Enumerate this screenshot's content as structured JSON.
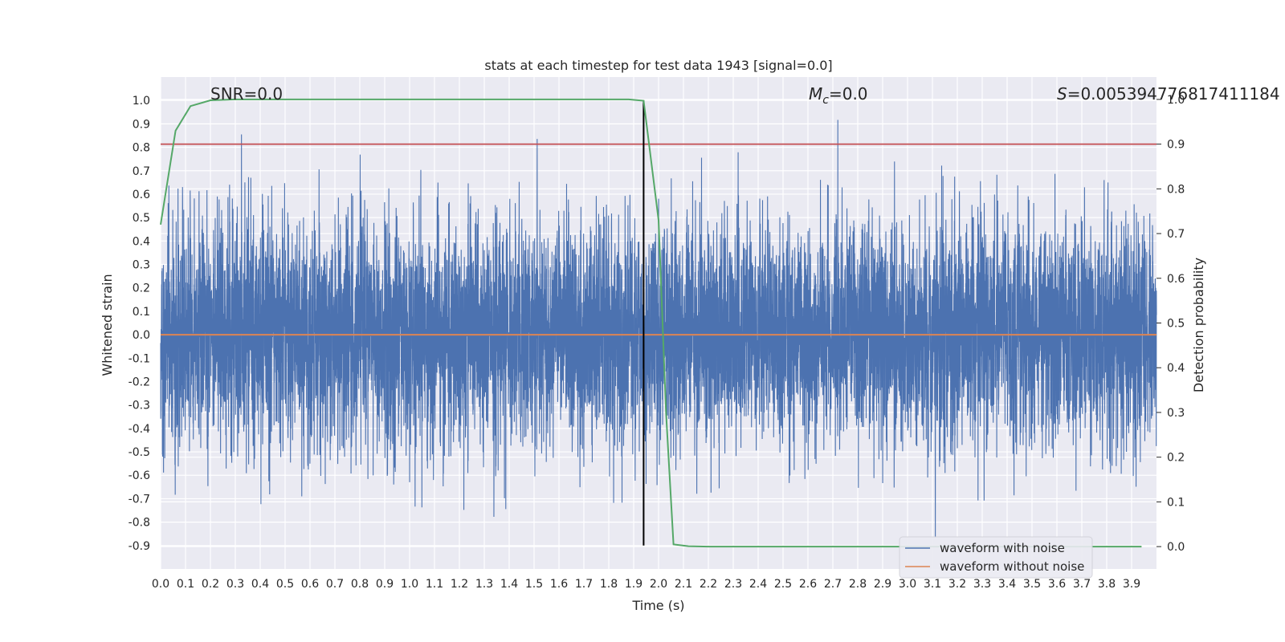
{
  "figure": {
    "title": "stats at each timestep for test data 1943 [signal=0.0]"
  },
  "annotations": {
    "snr": "SNR=0.0",
    "mc_symbol": "M",
    "mc_subscript": "c",
    "mc_value": "=0.0",
    "s_symbol": "S",
    "s_value": "=0.005394776817411184"
  },
  "colors": {
    "background": "#eaeaf2",
    "grid": "#ffffff",
    "noisy_waveform": "#4c72b0",
    "clean_waveform": "#dd8452",
    "detection_probability": "#55a868",
    "threshold": "#c44e52",
    "marker": "#000000"
  },
  "chart_data": {
    "type": "line",
    "title": "stats at each timestep for test data 1943 [signal=0.0]",
    "xlabel": "Time (s)",
    "ylabel": "Whitened strain",
    "y2label": "Detection probability",
    "xlim": [
      0.0,
      4.0
    ],
    "ylim": [
      -1.0,
      1.1
    ],
    "y2lim": [
      -0.05,
      1.05
    ],
    "grid": true,
    "legend_position": "bottom-right",
    "xticks": [
      "0.0",
      "0.1",
      "0.2",
      "0.3",
      "0.4",
      "0.5",
      "0.6",
      "0.7",
      "0.8",
      "0.9",
      "1.0",
      "1.1",
      "1.2",
      "1.3",
      "1.4",
      "1.5",
      "1.6",
      "1.7",
      "1.8",
      "1.9",
      "2.0",
      "2.1",
      "2.2",
      "2.3",
      "2.4",
      "2.5",
      "2.6",
      "2.7",
      "2.8",
      "2.9",
      "3.0",
      "3.1",
      "3.2",
      "3.3",
      "3.4",
      "3.5",
      "3.6",
      "3.7",
      "3.8",
      "3.9"
    ],
    "yticks": [
      "1.0",
      "0.9",
      "0.8",
      "0.7",
      "0.6",
      "0.5",
      "0.4",
      "0.3",
      "0.2",
      "0.1",
      "0.0",
      "-0.1",
      "-0.2",
      "-0.3",
      "-0.4",
      "-0.5",
      "-0.6",
      "-0.7",
      "-0.8",
      "-0.9"
    ],
    "y2ticks": [
      "1.0",
      "0.9",
      "0.8",
      "0.7",
      "0.6",
      "0.5",
      "0.4",
      "0.3",
      "0.2",
      "0.1",
      "0.0"
    ],
    "series": [
      {
        "name": "waveform with noise",
        "axis": "left",
        "description_samples": "dense noise, approx. within -0.9 to 1.0",
        "x_range": [
          0.0,
          4.0
        ],
        "y_range": [
          -0.9,
          1.0
        ]
      },
      {
        "name": "waveform without noise",
        "axis": "left",
        "x": [
          0.0,
          4.0
        ],
        "y": [
          0.0,
          0.0
        ]
      },
      {
        "axis": "right",
        "x": [
          0.0,
          0.06,
          0.12,
          0.2,
          0.3,
          1.5,
          1.88,
          1.94,
          2.0,
          2.03,
          2.06,
          2.12,
          2.2,
          3.94
        ],
        "y": [
          0.72,
          0.93,
          0.985,
          0.998,
          1.0,
          1.0,
          1.0,
          0.997,
          0.73,
          0.3,
          0.005,
          0.001,
          0.0,
          0.0
        ]
      },
      {
        "axis": "right",
        "x": [
          0.0,
          4.0
        ],
        "y": [
          0.9,
          0.9
        ]
      },
      {
        "axis": "left",
        "x": [
          1.94,
          1.94
        ],
        "y": [
          -0.9,
          1.0
        ]
      }
    ]
  }
}
